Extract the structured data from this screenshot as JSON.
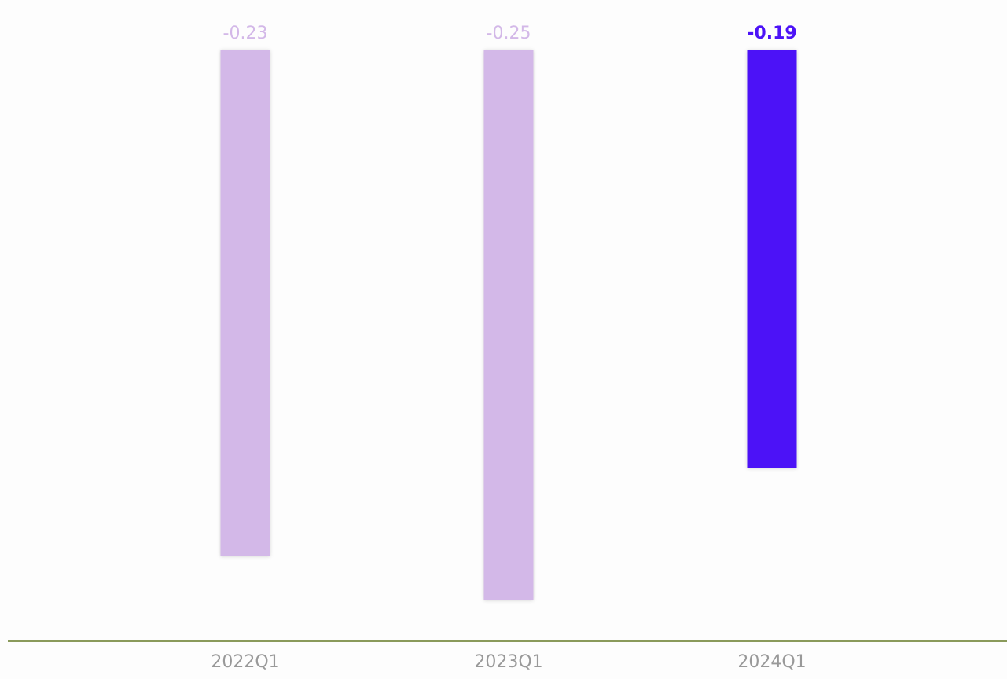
{
  "chart_data": {
    "type": "bar",
    "categories": [
      "2022Q1",
      "2023Q1",
      "2024Q1"
    ],
    "values": [
      -0.23,
      -0.25,
      -0.19
    ],
    "value_labels": [
      "-0.23",
      "-0.25",
      "-0.19"
    ],
    "highlight_index": 2,
    "ylim": [
      -0.27,
      0
    ],
    "grid": false,
    "legend": "none",
    "colors": {
      "bar": "#d3b8e8",
      "bar_highlight": "#4c12f7",
      "label": "#d3b8e8",
      "label_highlight": "#4c12f7",
      "axis_line": "#8a9a5b",
      "tick_label": "#999999"
    }
  }
}
